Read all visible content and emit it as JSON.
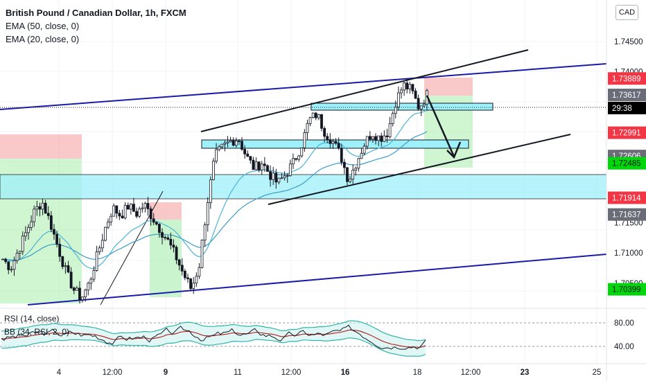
{
  "legend": {
    "symbol": "British Pound / Canadian Dollar, 1h, FXCM",
    "ema50": "EMA (50, close, 0)",
    "ema20": "EMA (20, close, 0)"
  },
  "currency_button": "CAD",
  "rsi_legend": {
    "rsi": "RSI (14, close)",
    "bb": "BB (34, RSI, 2, 0)"
  },
  "colors": {
    "up": "#131722",
    "down": "#131722",
    "ema50": "#3c9bc8",
    "ema20": "#4bb3d6",
    "trend_blue": "#1a1aa8",
    "zone_cyan": "#9ef0fa",
    "red_zone": "#f7b5b5",
    "green_zone": "#a7ecac",
    "badge_red": "#f23645",
    "badge_green": "#00d60b",
    "badge_gray": "#6a6d78",
    "countdown_bg": "#000000"
  },
  "chart_data": {
    "type": "candlestick",
    "title": "British Pound / Canadian Dollar, 1h, FXCM",
    "y_axis": {
      "ticks": [
        1.745,
        1.74,
        1.73,
        1.72,
        1.715,
        1.71,
        1.705
      ],
      "tick_labels": [
        "1.74500",
        "1.74000",
        "",
        "",
        "1.71500",
        "1.71000",
        "1.70500"
      ],
      "range": [
        1.703,
        1.748
      ]
    },
    "x_axis": {
      "ticks": [
        {
          "label": "4",
          "bold": false
        },
        {
          "label": "12:00",
          "bold": false
        },
        {
          "label": "9",
          "bold": true
        },
        {
          "label": "11",
          "bold": false
        },
        {
          "label": "12:00",
          "bold": false
        },
        {
          "label": "16",
          "bold": true
        },
        {
          "label": "18",
          "bold": false
        },
        {
          "label": "12:00",
          "bold": false
        },
        {
          "label": "23",
          "bold": true
        },
        {
          "label": "25",
          "bold": false
        }
      ]
    },
    "price_badges": [
      {
        "label": "1.73889",
        "price": 1.73889,
        "type": "red"
      },
      {
        "label": "1.73617",
        "price": 1.73617,
        "type": "gray"
      },
      {
        "label": "29:38",
        "price": 1.734,
        "type": "countdown"
      },
      {
        "label": "1.72991",
        "price": 1.72991,
        "type": "red"
      },
      {
        "label": "1.72606",
        "price": 1.72606,
        "type": "gray"
      },
      {
        "label": "1.72485",
        "price": 1.72485,
        "type": "green"
      },
      {
        "label": "1.71914",
        "price": 1.71914,
        "type": "red"
      },
      {
        "label": "1.71637",
        "price": 1.71637,
        "type": "gray"
      },
      {
        "label": "1.70399",
        "price": 1.70399,
        "type": "green"
      }
    ],
    "price_path": [
      1.709,
      1.7075,
      1.7105,
      1.7135,
      1.7168,
      1.7185,
      1.7152,
      1.711,
      1.707,
      1.704,
      1.7025,
      1.705,
      1.7095,
      1.714,
      1.7175,
      1.7162,
      1.7178,
      1.7165,
      1.718,
      1.716,
      1.714,
      1.712,
      1.7095,
      1.7065,
      1.704,
      1.708,
      1.718,
      1.726,
      1.7275,
      1.7285,
      1.729,
      1.726,
      1.724,
      1.725,
      1.723,
      1.7215,
      1.723,
      1.725,
      1.7278,
      1.732,
      1.733,
      1.73,
      1.7285,
      1.7262,
      1.722,
      1.725,
      1.728,
      1.73,
      1.729,
      1.73,
      1.735,
      1.7378,
      1.737,
      1.734,
      1.7362
    ],
    "rsi": {
      "ticks": [
        80,
        40
      ],
      "tick_labels": [
        "80.00",
        "40.00"
      ],
      "range": [
        30,
        90
      ]
    }
  }
}
